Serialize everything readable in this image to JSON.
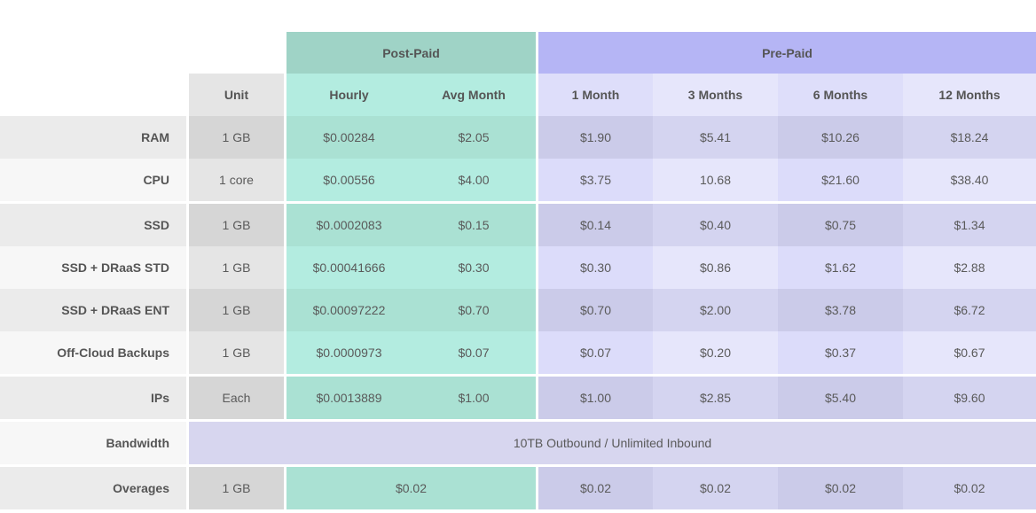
{
  "header": {
    "groups": {
      "post_paid": "Post-Paid",
      "pre_paid": "Pre-Paid"
    },
    "columns": [
      "Unit",
      "Hourly",
      "Avg Month",
      "1 Month",
      "3 Months",
      "6 Months",
      "12 Months"
    ]
  },
  "rows": [
    {
      "label": "RAM",
      "unit": "1 GB",
      "hourly": "$0.00284",
      "avg_month": "$2.05",
      "m1": "$1.90",
      "m3": "$5.41",
      "m6": "$10.26",
      "m12": "$18.24"
    },
    {
      "label": "CPU",
      "unit": "1 core",
      "hourly": "$0.00556",
      "avg_month": "$4.00",
      "m1": "$3.75",
      "m3": "10.68",
      "m6": "$21.60",
      "m12": "$38.40"
    },
    {
      "label": "SSD",
      "unit": "1 GB",
      "hourly": "$0.0002083",
      "avg_month": "$0.15",
      "m1": "$0.14",
      "m3": "$0.40",
      "m6": "$0.75",
      "m12": "$1.34"
    },
    {
      "label": "SSD + DRaaS STD",
      "unit": "1 GB",
      "hourly": "$0.00041666",
      "avg_month": "$0.30",
      "m1": "$0.30",
      "m3": "$0.86",
      "m6": "$1.62",
      "m12": "$2.88"
    },
    {
      "label": "SSD + DRaaS ENT",
      "unit": "1 GB",
      "hourly": "$0.00097222",
      "avg_month": "$0.70",
      "m1": "$0.70",
      "m3": "$2.00",
      "m6": "$3.78",
      "m12": "$6.72"
    },
    {
      "label": "Off-Cloud Backups",
      "unit": "1 GB",
      "hourly": "$0.0000973",
      "avg_month": "$0.07",
      "m1": "$0.07",
      "m3": "$0.20",
      "m6": "$0.37",
      "m12": "$0.67"
    },
    {
      "label": "IPs",
      "unit": "Each",
      "hourly": "$0.0013889",
      "avg_month": "$1.00",
      "m1": "$1.00",
      "m3": "$2.85",
      "m6": "$5.40",
      "m12": "$9.60"
    }
  ],
  "bandwidth": {
    "label": "Bandwidth",
    "value": "10TB Outbound / Unlimited Inbound"
  },
  "overages": {
    "label": "Overages",
    "unit": "1 GB",
    "post_paid": "$0.02",
    "m1": "$0.02",
    "m3": "$0.02",
    "m6": "$0.02",
    "m12": "$0.02"
  },
  "colors": {
    "post_paid_header": "#9fd3c6",
    "post_paid_sub": "#b3ece0",
    "post_paid_dark": "#aae1d3",
    "pre_paid_header": "#b5b5f5",
    "pre_paid_sub": "#dedefa",
    "pre_paid_dark": "#cccceb",
    "unit_header": "#e5e5e5",
    "label_dark": "#ebebeb",
    "label_light": "#f7f7f7",
    "bandwidth": "#d7d6ef"
  }
}
